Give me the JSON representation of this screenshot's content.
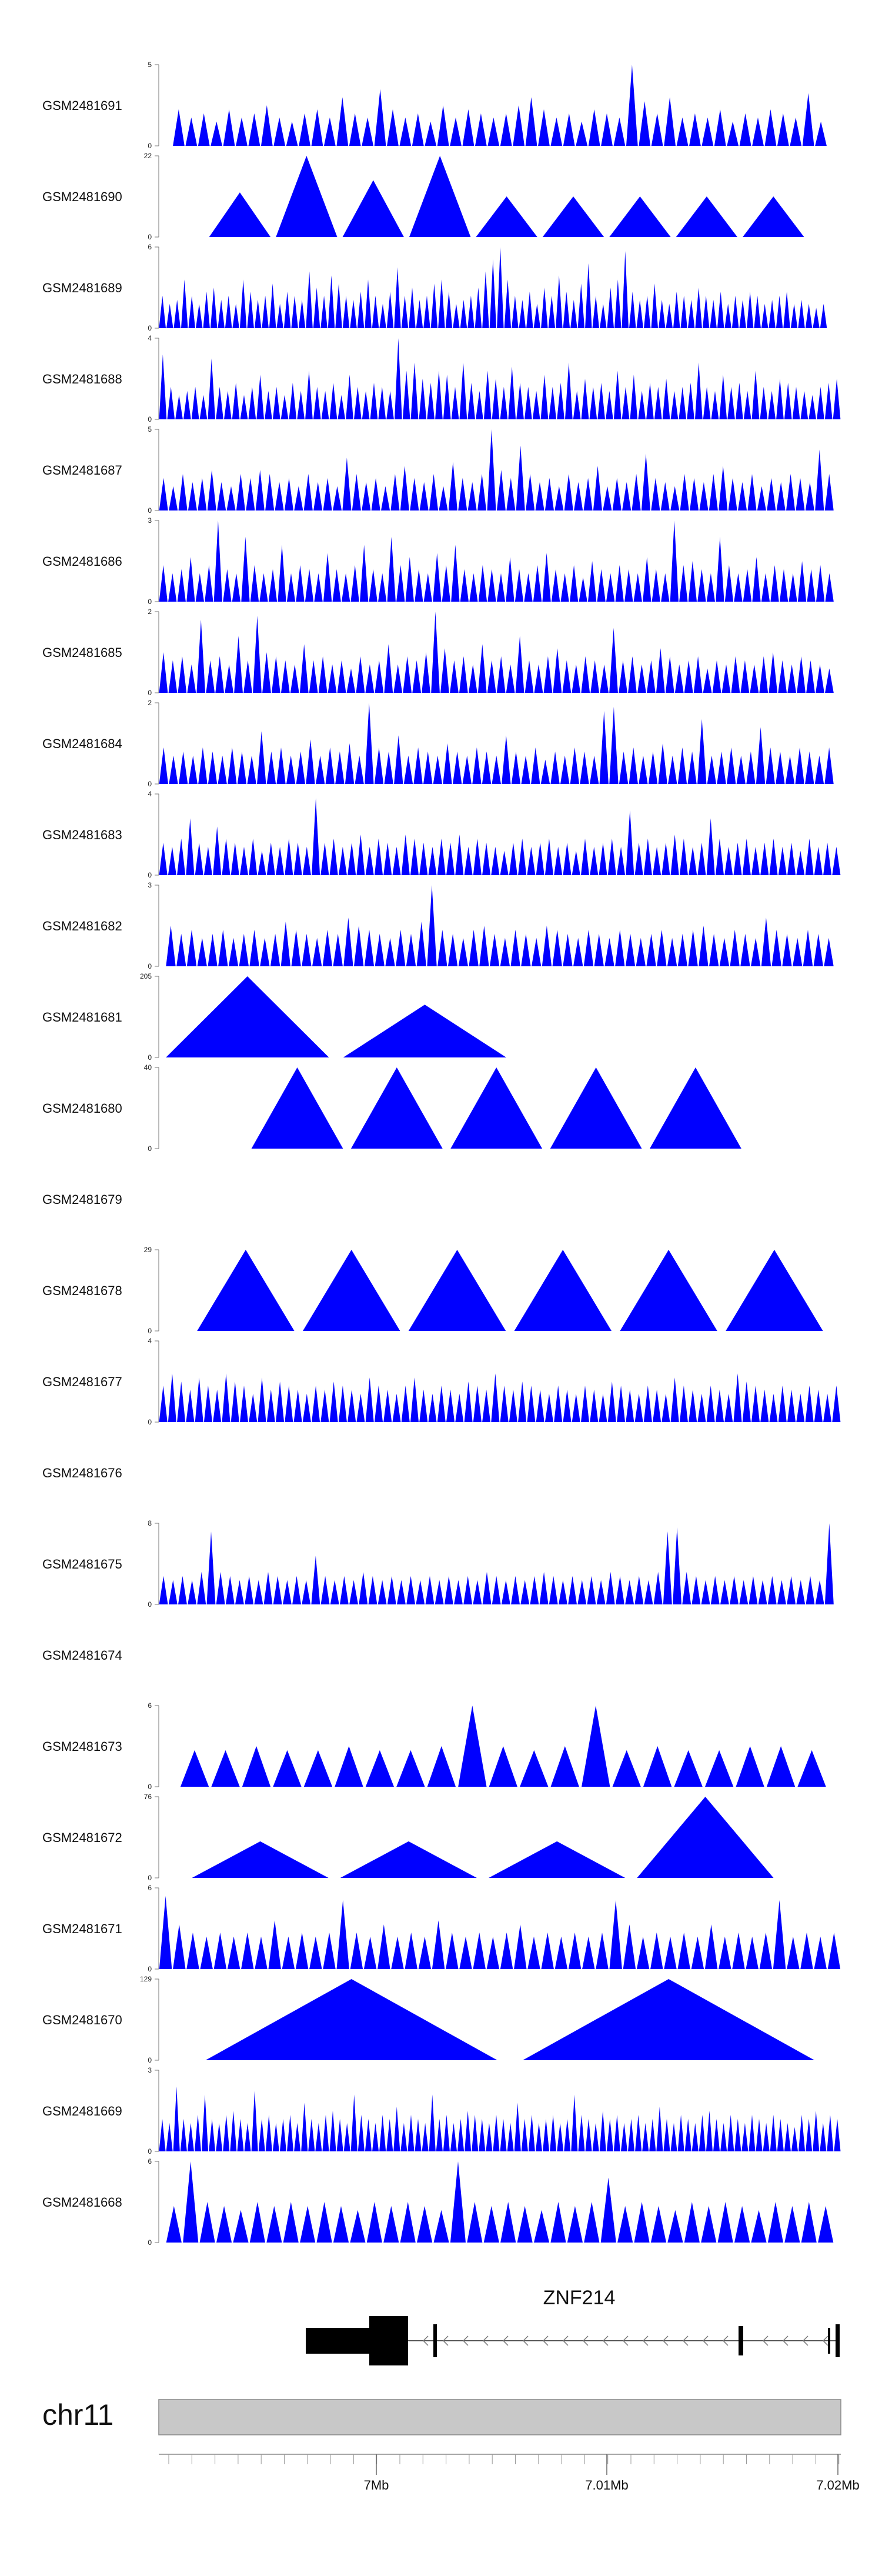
{
  "chart_data": {
    "type": "area",
    "fill_color": "#0000ff",
    "tracks": [
      {
        "name": "GSM2481691",
        "ymax": 5,
        "peaks": [
          0.45,
          0.35,
          0.4,
          0.3,
          0.45,
          0.35,
          0.4,
          0.5,
          0.35,
          0.3,
          0.4,
          0.45,
          0.35,
          0.6,
          0.4,
          0.35,
          0.7,
          0.45,
          0.35,
          0.4,
          0.3,
          0.5,
          0.35,
          0.45,
          0.4,
          0.35,
          0.4,
          0.5,
          0.6,
          0.45,
          0.35,
          0.4,
          0.3,
          0.45,
          0.4,
          0.35,
          1.0,
          0.55,
          0.4,
          0.6,
          0.35,
          0.4,
          0.35,
          0.45,
          0.3,
          0.4,
          0.35,
          0.45,
          0.4,
          0.35,
          0.65,
          0.3
        ]
      },
      {
        "name": "GSM2481690",
        "ymax": 22,
        "peaks": [
          0.55,
          1.0,
          0.7,
          1.0,
          0.5,
          0.5,
          0.5,
          0.5,
          0.5
        ]
      },
      {
        "name": "GSM2481689",
        "ymax": 6,
        "peaks": [
          0.4,
          0.3,
          0.35,
          0.6,
          0.4,
          0.3,
          0.45,
          0.5,
          0.35,
          0.4,
          0.3,
          0.6,
          0.45,
          0.35,
          0.4,
          0.55,
          0.3,
          0.45,
          0.4,
          0.35,
          0.7,
          0.5,
          0.4,
          0.65,
          0.55,
          0.4,
          0.35,
          0.45,
          0.6,
          0.4,
          0.3,
          0.45,
          0.75,
          0.4,
          0.5,
          0.35,
          0.4,
          0.55,
          0.6,
          0.45,
          0.3,
          0.35,
          0.4,
          0.5,
          0.7,
          0.85,
          1.0,
          0.6,
          0.4,
          0.35,
          0.45,
          0.3,
          0.5,
          0.4,
          0.65,
          0.45,
          0.35,
          0.55,
          0.8,
          0.4,
          0.3,
          0.5,
          0.6,
          0.95,
          0.45,
          0.35,
          0.4,
          0.55,
          0.35,
          0.3,
          0.45,
          0.4,
          0.35,
          0.5,
          0.4,
          0.35,
          0.45,
          0.3,
          0.4,
          0.35,
          0.45,
          0.4,
          0.3,
          0.35,
          0.4,
          0.45,
          0.3,
          0.35,
          0.3,
          0.25,
          0.3
        ]
      },
      {
        "name": "GSM2481688",
        "ymax": 4,
        "peaks": [
          0.8,
          0.4,
          0.3,
          0.35,
          0.4,
          0.3,
          0.75,
          0.4,
          0.35,
          0.45,
          0.3,
          0.4,
          0.55,
          0.35,
          0.4,
          0.3,
          0.45,
          0.35,
          0.6,
          0.4,
          0.35,
          0.45,
          0.3,
          0.55,
          0.4,
          0.35,
          0.45,
          0.4,
          0.35,
          1.0,
          0.6,
          0.7,
          0.5,
          0.45,
          0.6,
          0.55,
          0.4,
          0.7,
          0.45,
          0.35,
          0.6,
          0.5,
          0.4,
          0.65,
          0.45,
          0.4,
          0.35,
          0.55,
          0.4,
          0.45,
          0.7,
          0.35,
          0.5,
          0.4,
          0.45,
          0.35,
          0.6,
          0.4,
          0.55,
          0.35,
          0.45,
          0.4,
          0.5,
          0.35,
          0.4,
          0.45,
          0.7,
          0.4,
          0.35,
          0.55,
          0.4,
          0.45,
          0.35,
          0.6,
          0.4,
          0.35,
          0.5,
          0.45,
          0.4,
          0.35,
          0.3,
          0.4,
          0.45,
          0.5
        ]
      },
      {
        "name": "GSM2481687",
        "ymax": 5,
        "peaks": [
          0.4,
          0.3,
          0.45,
          0.35,
          0.4,
          0.5,
          0.35,
          0.3,
          0.45,
          0.4,
          0.5,
          0.45,
          0.35,
          0.4,
          0.3,
          0.45,
          0.35,
          0.4,
          0.3,
          0.65,
          0.45,
          0.35,
          0.4,
          0.3,
          0.45,
          0.55,
          0.4,
          0.35,
          0.45,
          0.3,
          0.6,
          0.4,
          0.35,
          0.45,
          1.0,
          0.5,
          0.4,
          0.8,
          0.45,
          0.35,
          0.4,
          0.3,
          0.45,
          0.35,
          0.4,
          0.55,
          0.3,
          0.4,
          0.35,
          0.45,
          0.7,
          0.4,
          0.35,
          0.3,
          0.45,
          0.4,
          0.35,
          0.45,
          0.55,
          0.4,
          0.35,
          0.45,
          0.3,
          0.4,
          0.35,
          0.45,
          0.4,
          0.35,
          0.75,
          0.45
        ]
      },
      {
        "name": "GSM2481686",
        "ymax": 3,
        "peaks": [
          0.45,
          0.35,
          0.4,
          0.55,
          0.35,
          0.45,
          1.0,
          0.4,
          0.35,
          0.8,
          0.45,
          0.35,
          0.4,
          0.7,
          0.35,
          0.45,
          0.4,
          0.35,
          0.6,
          0.4,
          0.35,
          0.45,
          0.7,
          0.4,
          0.35,
          0.8,
          0.45,
          0.55,
          0.4,
          0.35,
          0.6,
          0.45,
          0.7,
          0.4,
          0.35,
          0.45,
          0.4,
          0.35,
          0.55,
          0.4,
          0.35,
          0.45,
          0.6,
          0.4,
          0.35,
          0.45,
          0.3,
          0.5,
          0.4,
          0.35,
          0.45,
          0.4,
          0.35,
          0.55,
          0.4,
          0.35,
          1.0,
          0.45,
          0.5,
          0.4,
          0.35,
          0.8,
          0.45,
          0.35,
          0.4,
          0.55,
          0.35,
          0.45,
          0.4,
          0.35,
          0.5,
          0.4,
          0.45,
          0.35
        ]
      },
      {
        "name": "GSM2481685",
        "ymax": 2,
        "peaks": [
          0.5,
          0.4,
          0.45,
          0.35,
          0.9,
          0.4,
          0.45,
          0.35,
          0.7,
          0.4,
          0.95,
          0.5,
          0.45,
          0.4,
          0.35,
          0.6,
          0.4,
          0.45,
          0.35,
          0.4,
          0.3,
          0.45,
          0.35,
          0.4,
          0.6,
          0.35,
          0.45,
          0.4,
          0.5,
          1.0,
          0.55,
          0.4,
          0.45,
          0.35,
          0.6,
          0.4,
          0.45,
          0.35,
          0.7,
          0.4,
          0.35,
          0.45,
          0.55,
          0.4,
          0.35,
          0.45,
          0.4,
          0.35,
          0.8,
          0.4,
          0.45,
          0.35,
          0.4,
          0.55,
          0.45,
          0.35,
          0.4,
          0.45,
          0.3,
          0.4,
          0.35,
          0.45,
          0.4,
          0.35,
          0.45,
          0.5,
          0.4,
          0.35,
          0.45,
          0.4,
          0.35,
          0.3
        ]
      },
      {
        "name": "GSM2481684",
        "ymax": 2,
        "peaks": [
          0.45,
          0.35,
          0.4,
          0.35,
          0.45,
          0.4,
          0.35,
          0.45,
          0.4,
          0.35,
          0.65,
          0.4,
          0.45,
          0.35,
          0.4,
          0.55,
          0.35,
          0.45,
          0.4,
          0.5,
          0.35,
          1.0,
          0.45,
          0.4,
          0.6,
          0.35,
          0.45,
          0.4,
          0.35,
          0.5,
          0.4,
          0.35,
          0.45,
          0.4,
          0.35,
          0.6,
          0.4,
          0.35,
          0.45,
          0.3,
          0.4,
          0.35,
          0.45,
          0.4,
          0.35,
          0.9,
          0.95,
          0.4,
          0.45,
          0.35,
          0.4,
          0.5,
          0.35,
          0.45,
          0.4,
          0.8,
          0.35,
          0.4,
          0.45,
          0.35,
          0.4,
          0.7,
          0.45,
          0.4,
          0.35,
          0.45,
          0.4,
          0.35,
          0.45
        ]
      },
      {
        "name": "GSM2481683",
        "ymax": 4,
        "peaks": [
          0.4,
          0.35,
          0.45,
          0.7,
          0.4,
          0.35,
          0.6,
          0.45,
          0.4,
          0.35,
          0.45,
          0.3,
          0.4,
          0.35,
          0.45,
          0.4,
          0.35,
          0.95,
          0.4,
          0.45,
          0.35,
          0.4,
          0.5,
          0.35,
          0.45,
          0.4,
          0.35,
          0.5,
          0.45,
          0.4,
          0.35,
          0.45,
          0.4,
          0.5,
          0.35,
          0.45,
          0.4,
          0.35,
          0.3,
          0.4,
          0.45,
          0.35,
          0.4,
          0.45,
          0.35,
          0.4,
          0.3,
          0.45,
          0.35,
          0.4,
          0.45,
          0.35,
          0.8,
          0.4,
          0.45,
          0.35,
          0.4,
          0.5,
          0.45,
          0.35,
          0.4,
          0.7,
          0.45,
          0.35,
          0.4,
          0.45,
          0.35,
          0.4,
          0.45,
          0.35,
          0.4,
          0.3,
          0.45,
          0.35,
          0.4,
          0.35
        ]
      },
      {
        "name": "GSM2481682",
        "ymax": 3,
        "peaks": [
          0.5,
          0.4,
          0.45,
          0.35,
          0.4,
          0.45,
          0.35,
          0.4,
          0.45,
          0.35,
          0.4,
          0.55,
          0.45,
          0.4,
          0.35,
          0.45,
          0.4,
          0.6,
          0.5,
          0.45,
          0.4,
          0.35,
          0.45,
          0.4,
          0.55,
          1.0,
          0.45,
          0.4,
          0.35,
          0.45,
          0.5,
          0.4,
          0.35,
          0.45,
          0.4,
          0.35,
          0.5,
          0.45,
          0.4,
          0.35,
          0.45,
          0.4,
          0.35,
          0.45,
          0.4,
          0.35,
          0.4,
          0.45,
          0.35,
          0.4,
          0.45,
          0.5,
          0.4,
          0.35,
          0.45,
          0.4,
          0.35,
          0.6,
          0.45,
          0.4,
          0.35,
          0.45,
          0.4,
          0.35
        ]
      },
      {
        "name": "GSM2481681",
        "ymax": 205,
        "peaks": [
          1.0,
          0.65
        ]
      },
      {
        "name": "GSM2481680",
        "ymax": 40,
        "peaks": [
          1.0,
          1.0,
          1.0,
          1.0,
          1.0
        ]
      },
      {
        "name": "GSM2481679",
        "ymax": null,
        "peaks": []
      },
      {
        "name": "GSM2481678",
        "ymax": 29,
        "peaks": [
          1.0,
          1.0,
          1.0,
          1.0,
          1.0,
          1.0
        ]
      },
      {
        "name": "GSM2481677",
        "ymax": 4,
        "peaks": [
          0.45,
          0.6,
          0.5,
          0.4,
          0.55,
          0.45,
          0.4,
          0.6,
          0.5,
          0.45,
          0.35,
          0.55,
          0.4,
          0.5,
          0.45,
          0.4,
          0.35,
          0.45,
          0.4,
          0.5,
          0.45,
          0.4,
          0.35,
          0.55,
          0.45,
          0.4,
          0.35,
          0.45,
          0.55,
          0.4,
          0.35,
          0.45,
          0.4,
          0.35,
          0.5,
          0.45,
          0.4,
          0.6,
          0.45,
          0.4,
          0.5,
          0.45,
          0.4,
          0.35,
          0.45,
          0.4,
          0.35,
          0.45,
          0.4,
          0.35,
          0.5,
          0.45,
          0.4,
          0.35,
          0.45,
          0.4,
          0.35,
          0.55,
          0.45,
          0.4,
          0.35,
          0.45,
          0.4,
          0.35,
          0.6,
          0.5,
          0.45,
          0.4,
          0.35,
          0.45,
          0.4,
          0.35,
          0.45,
          0.4,
          0.35,
          0.45
        ]
      },
      {
        "name": "GSM2481676",
        "ymax": null,
        "peaks": []
      },
      {
        "name": "GSM2481675",
        "ymax": 8,
        "peaks": [
          0.35,
          0.3,
          0.35,
          0.3,
          0.4,
          0.9,
          0.4,
          0.35,
          0.3,
          0.35,
          0.3,
          0.4,
          0.35,
          0.3,
          0.35,
          0.3,
          0.6,
          0.35,
          0.3,
          0.35,
          0.3,
          0.4,
          0.35,
          0.3,
          0.35,
          0.3,
          0.35,
          0.3,
          0.35,
          0.3,
          0.35,
          0.3,
          0.35,
          0.3,
          0.4,
          0.35,
          0.3,
          0.35,
          0.3,
          0.35,
          0.4,
          0.35,
          0.3,
          0.35,
          0.3,
          0.35,
          0.3,
          0.4,
          0.35,
          0.3,
          0.35,
          0.3,
          0.4,
          0.9,
          0.95,
          0.4,
          0.35,
          0.3,
          0.35,
          0.3,
          0.35,
          0.3,
          0.35,
          0.3,
          0.35,
          0.3,
          0.35,
          0.3,
          0.35,
          0.3,
          1.0
        ]
      },
      {
        "name": "GSM2481674",
        "ymax": null,
        "peaks": []
      },
      {
        "name": "GSM2481673",
        "ymax": 6,
        "peaks": [
          0.45,
          0.45,
          0.5,
          0.45,
          0.45,
          0.5,
          0.45,
          0.45,
          0.5,
          1.0,
          0.5,
          0.45,
          0.5,
          1.0,
          0.45,
          0.5,
          0.45,
          0.45,
          0.5,
          0.5,
          0.45
        ]
      },
      {
        "name": "GSM2481672",
        "ymax": 76,
        "peaks": [
          0.45,
          0.45,
          0.45,
          1.0
        ]
      },
      {
        "name": "GSM2481671",
        "ymax": 6,
        "peaks": [
          0.9,
          0.55,
          0.45,
          0.4,
          0.45,
          0.4,
          0.45,
          0.4,
          0.6,
          0.4,
          0.45,
          0.4,
          0.45,
          0.85,
          0.45,
          0.4,
          0.55,
          0.4,
          0.45,
          0.4,
          0.6,
          0.45,
          0.4,
          0.45,
          0.4,
          0.45,
          0.55,
          0.4,
          0.45,
          0.4,
          0.45,
          0.4,
          0.45,
          0.85,
          0.55,
          0.4,
          0.45,
          0.4,
          0.45,
          0.4,
          0.55,
          0.4,
          0.45,
          0.4,
          0.45,
          0.85,
          0.4,
          0.45,
          0.4,
          0.45
        ]
      },
      {
        "name": "GSM2481670",
        "ymax": 129,
        "peaks": [
          1.0,
          1.0
        ]
      },
      {
        "name": "GSM2481669",
        "ymax": 3,
        "peaks": [
          0.4,
          0.35,
          0.8,
          0.4,
          0.35,
          0.45,
          0.7,
          0.4,
          0.35,
          0.45,
          0.5,
          0.4,
          0.35,
          0.75,
          0.4,
          0.45,
          0.35,
          0.4,
          0.45,
          0.35,
          0.6,
          0.4,
          0.35,
          0.45,
          0.5,
          0.4,
          0.35,
          0.7,
          0.45,
          0.4,
          0.35,
          0.45,
          0.4,
          0.55,
          0.35,
          0.45,
          0.4,
          0.35,
          0.7,
          0.4,
          0.45,
          0.35,
          0.4,
          0.5,
          0.45,
          0.4,
          0.35,
          0.45,
          0.4,
          0.35,
          0.6,
          0.4,
          0.45,
          0.35,
          0.4,
          0.45,
          0.35,
          0.4,
          0.7,
          0.45,
          0.4,
          0.35,
          0.5,
          0.4,
          0.45,
          0.35,
          0.4,
          0.45,
          0.35,
          0.4,
          0.55,
          0.4,
          0.35,
          0.45,
          0.4,
          0.35,
          0.45,
          0.5,
          0.4,
          0.35,
          0.45,
          0.4,
          0.35,
          0.45,
          0.4,
          0.35,
          0.45,
          0.4,
          0.35,
          0.3,
          0.45,
          0.4,
          0.5,
          0.35,
          0.45,
          0.4
        ]
      },
      {
        "name": "GSM2481668",
        "ymax": 6,
        "peaks": [
          0.45,
          1.0,
          0.5,
          0.45,
          0.4,
          0.5,
          0.45,
          0.5,
          0.45,
          0.5,
          0.45,
          0.4,
          0.5,
          0.45,
          0.5,
          0.45,
          0.4,
          1.0,
          0.5,
          0.45,
          0.5,
          0.45,
          0.4,
          0.5,
          0.45,
          0.5,
          0.8,
          0.45,
          0.5,
          0.45,
          0.4,
          0.5,
          0.45,
          0.5,
          0.45,
          0.4,
          0.5,
          0.45,
          0.5,
          0.45
        ]
      }
    ],
    "gene": {
      "name": "ZNF214",
      "strand": "-"
    },
    "chromosome": "chr11",
    "xaxis": {
      "ticks": [
        "7Mb",
        "7.01Mb",
        "7.02Mb"
      ]
    }
  }
}
